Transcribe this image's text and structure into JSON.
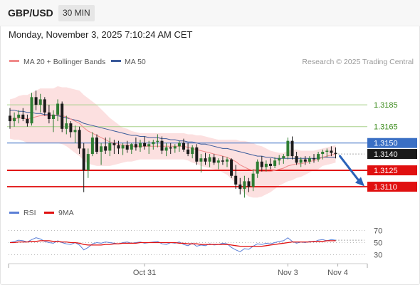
{
  "header": {
    "pair": "GBP/USD",
    "timeframe": "30 MIN"
  },
  "datetime": "Monday, November 3, 2025 7:10:24 AM CET",
  "copyright": "Research © 2025 Trading Central",
  "colors": {
    "ma20": "#f08a8a",
    "ma50": "#3a5a9a",
    "band": "#fbd6d6",
    "up": "#2e7d32",
    "down": "#1b1b1b",
    "support": "#e01010",
    "resistance_line": "#a8d08a",
    "current_line": "#3a6fc4",
    "rsi": "#5b7fd6",
    "rsi_ma": "#e01010"
  },
  "chart_data": [
    {
      "type": "candlestick",
      "legend": [
        "MA 20 + Bollinger Bands",
        "MA 50"
      ],
      "xticks": [
        "Oct 31",
        "Nov 3",
        "Nov 4"
      ],
      "ylim": [
        1.3097,
        1.3217
      ],
      "levels": [
        {
          "value": 1.3185,
          "label": "1.3185",
          "kind": "resistance"
        },
        {
          "value": 1.3165,
          "label": "1.3165",
          "kind": "resistance"
        },
        {
          "value": 1.315,
          "label": "1.3150",
          "kind": "current"
        },
        {
          "value": 1.314,
          "label": "1.3140",
          "kind": "last"
        },
        {
          "value": 1.3125,
          "label": "1.3125",
          "kind": "support"
        },
        {
          "value": 1.311,
          "label": "1.3110",
          "kind": "support"
        }
      ],
      "ohlc": [
        [
          1.3175,
          1.3182,
          1.3163,
          1.317
        ],
        [
          1.317,
          1.3178,
          1.3165,
          1.3173
        ],
        [
          1.3173,
          1.318,
          1.3168,
          1.3176
        ],
        [
          1.3176,
          1.3182,
          1.317,
          1.3172
        ],
        [
          1.3172,
          1.3176,
          1.3165,
          1.3168
        ],
        [
          1.3168,
          1.3196,
          1.3166,
          1.3192
        ],
        [
          1.3192,
          1.3198,
          1.318,
          1.3185
        ],
        [
          1.3185,
          1.3195,
          1.3178,
          1.319
        ],
        [
          1.319,
          1.3192,
          1.3175,
          1.3178
        ],
        [
          1.3178,
          1.3185,
          1.3168,
          1.3172
        ],
        [
          1.3172,
          1.318,
          1.316,
          1.3176
        ],
        [
          1.3176,
          1.319,
          1.317,
          1.3186
        ],
        [
          1.3186,
          1.3188,
          1.316,
          1.3163
        ],
        [
          1.3163,
          1.3175,
          1.3158,
          1.3168
        ],
        [
          1.3168,
          1.317,
          1.3155,
          1.316
        ],
        [
          1.316,
          1.3166,
          1.315,
          1.3162
        ],
        [
          1.3162,
          1.3165,
          1.314,
          1.3145
        ],
        [
          1.3145,
          1.315,
          1.3105,
          1.3125
        ],
        [
          1.3125,
          1.3145,
          1.3118,
          1.314
        ],
        [
          1.314,
          1.316,
          1.3138,
          1.3155
        ],
        [
          1.3155,
          1.3158,
          1.314,
          1.3142
        ],
        [
          1.3142,
          1.315,
          1.313,
          1.3147
        ],
        [
          1.3147,
          1.3155,
          1.314,
          1.3143
        ],
        [
          1.3143,
          1.3155,
          1.3138,
          1.315
        ],
        [
          1.315,
          1.3153,
          1.314,
          1.3148
        ],
        [
          1.3148,
          1.3152,
          1.314,
          1.3145
        ],
        [
          1.3145,
          1.315,
          1.3139,
          1.3148
        ],
        [
          1.3148,
          1.3152,
          1.3141,
          1.3144
        ],
        [
          1.3144,
          1.315,
          1.314,
          1.3149
        ],
        [
          1.3149,
          1.3155,
          1.3143,
          1.3146
        ],
        [
          1.3146,
          1.3153,
          1.3142,
          1.315
        ],
        [
          1.315,
          1.3156,
          1.3144,
          1.3147
        ],
        [
          1.3147,
          1.3152,
          1.314,
          1.3149
        ],
        [
          1.3149,
          1.3153,
          1.3144,
          1.3151
        ],
        [
          1.3151,
          1.3158,
          1.3146,
          1.3152
        ],
        [
          1.3152,
          1.3156,
          1.314,
          1.3143
        ],
        [
          1.3143,
          1.315,
          1.3138,
          1.3146
        ],
        [
          1.3146,
          1.315,
          1.314,
          1.3145
        ],
        [
          1.3145,
          1.3149,
          1.3141,
          1.3147
        ],
        [
          1.3147,
          1.3152,
          1.3142,
          1.315
        ],
        [
          1.315,
          1.3154,
          1.3142,
          1.3144
        ],
        [
          1.3144,
          1.315,
          1.3138,
          1.314
        ],
        [
          1.314,
          1.3148,
          1.3136,
          1.3146
        ],
        [
          1.3146,
          1.3149,
          1.313,
          1.3133
        ],
        [
          1.3133,
          1.314,
          1.3123,
          1.3136
        ],
        [
          1.3136,
          1.3141,
          1.313,
          1.3133
        ],
        [
          1.3133,
          1.314,
          1.3128,
          1.3137
        ],
        [
          1.3137,
          1.314,
          1.313,
          1.3132
        ],
        [
          1.3132,
          1.3136,
          1.3126,
          1.3134
        ],
        [
          1.3134,
          1.3138,
          1.313,
          1.3133
        ],
        [
          1.3133,
          1.3137,
          1.3128,
          1.3135
        ],
        [
          1.3135,
          1.3136,
          1.3118,
          1.312
        ],
        [
          1.312,
          1.313,
          1.3108,
          1.3112
        ],
        [
          1.3112,
          1.3118,
          1.3103,
          1.3108
        ],
        [
          1.3108,
          1.312,
          1.31,
          1.3115
        ],
        [
          1.3115,
          1.3118,
          1.3105,
          1.311
        ],
        [
          1.311,
          1.3126,
          1.3106,
          1.3122
        ],
        [
          1.3122,
          1.3135,
          1.3118,
          1.3133
        ],
        [
          1.3133,
          1.3138,
          1.3124,
          1.3128
        ],
        [
          1.3128,
          1.3134,
          1.3124,
          1.3131
        ],
        [
          1.3131,
          1.3136,
          1.3126,
          1.3129
        ],
        [
          1.3129,
          1.3137,
          1.3127,
          1.3134
        ],
        [
          1.3134,
          1.3139,
          1.313,
          1.3136
        ],
        [
          1.3136,
          1.314,
          1.3131,
          1.3138
        ],
        [
          1.3138,
          1.3155,
          1.3135,
          1.3152
        ],
        [
          1.3152,
          1.3156,
          1.3135,
          1.3138
        ],
        [
          1.3138,
          1.3142,
          1.313,
          1.3132
        ],
        [
          1.3132,
          1.3137,
          1.3128,
          1.3135
        ],
        [
          1.3135,
          1.3138,
          1.313,
          1.3133
        ],
        [
          1.3133,
          1.3138,
          1.3131,
          1.3136
        ],
        [
          1.3136,
          1.314,
          1.3132,
          1.3135
        ],
        [
          1.3135,
          1.3142,
          1.3133,
          1.314
        ],
        [
          1.314,
          1.3144,
          1.3135,
          1.3142
        ],
        [
          1.3142,
          1.3145,
          1.3137,
          1.3143
        ],
        [
          1.3143,
          1.3147,
          1.3138,
          1.3141
        ],
        [
          1.3141,
          1.3146,
          1.3136,
          1.314
        ]
      ],
      "ma20": [
        1.3172,
        1.3172,
        1.3173,
        1.3173,
        1.3172,
        1.3173,
        1.3174,
        1.3175,
        1.3175,
        1.3175,
        1.3175,
        1.3176,
        1.3175,
        1.3174,
        1.3172,
        1.317,
        1.3168,
        1.3164,
        1.3161,
        1.3159,
        1.3157,
        1.3155,
        1.3153,
        1.3151,
        1.315,
        1.3149,
        1.3148,
        1.3148,
        1.3147,
        1.3147,
        1.3147,
        1.3147,
        1.3147,
        1.3147,
        1.3147,
        1.3147,
        1.3147,
        1.3147,
        1.3147,
        1.3147,
        1.3147,
        1.3146,
        1.3145,
        1.3144,
        1.3143,
        1.3142,
        1.3141,
        1.314,
        1.3139,
        1.3138,
        1.3137,
        1.3135,
        1.3133,
        1.313,
        1.3128,
        1.3126,
        1.3125,
        1.3124,
        1.3124,
        1.3124,
        1.3124,
        1.3125,
        1.3126,
        1.3127,
        1.3129,
        1.313,
        1.3131,
        1.3131,
        1.3132,
        1.3133,
        1.3134,
        1.3135,
        1.3137,
        1.3138,
        1.3139,
        1.314
      ],
      "ma50": [
        1.318,
        1.318,
        1.3179,
        1.3179,
        1.3178,
        1.3178,
        1.3177,
        1.3177,
        1.3176,
        1.3176,
        1.3175,
        1.3175,
        1.3174,
        1.3173,
        1.3172,
        1.3171,
        1.317,
        1.3168,
        1.3167,
        1.3166,
        1.3165,
        1.3164,
        1.3163,
        1.3162,
        1.3161,
        1.316,
        1.3159,
        1.3158,
        1.3157,
        1.3157,
        1.3156,
        1.3156,
        1.3155,
        1.3155,
        1.3155,
        1.3154,
        1.3154,
        1.3153,
        1.3153,
        1.3152,
        1.3152,
        1.3151,
        1.3151,
        1.315,
        1.3149,
        1.3149,
        1.3148,
        1.3147,
        1.3146,
        1.3145,
        1.3145,
        1.3144,
        1.3143,
        1.3142,
        1.3141,
        1.314,
        1.3139,
        1.3138,
        1.3138,
        1.3137,
        1.3137,
        1.3136,
        1.3136,
        1.3136,
        1.3136,
        1.3136,
        1.3136,
        1.3136,
        1.3136,
        1.3136,
        1.3136,
        1.3136,
        1.3137,
        1.3137,
        1.3137,
        1.3137
      ],
      "band_width": [
        0.0018,
        0.0019,
        0.002,
        0.0021,
        0.0022,
        0.0023,
        0.0024,
        0.0025,
        0.0025,
        0.0025,
        0.0025,
        0.0026,
        0.0026,
        0.0027,
        0.0028,
        0.0029,
        0.003,
        0.003,
        0.003,
        0.0029,
        0.0028,
        0.0026,
        0.0024,
        0.0022,
        0.002,
        0.0018,
        0.0016,
        0.0015,
        0.0014,
        0.0013,
        0.0012,
        0.0012,
        0.0012,
        0.0012,
        0.0012,
        0.0012,
        0.0012,
        0.0012,
        0.0012,
        0.0012,
        0.0012,
        0.0012,
        0.0013,
        0.0013,
        0.0014,
        0.0014,
        0.0014,
        0.0014,
        0.0014,
        0.0015,
        0.0016,
        0.0018,
        0.002,
        0.0022,
        0.0024,
        0.0025,
        0.0025,
        0.0024,
        0.0023,
        0.0021,
        0.0019,
        0.0017,
        0.0015,
        0.0014,
        0.0014,
        0.0014,
        0.0013,
        0.0012,
        0.0011,
        0.001,
        0.0009,
        0.0009,
        0.0008,
        0.0008,
        0.0008,
        0.0008
      ],
      "forecast_arrow": {
        "from": 1.314,
        "to": 1.3113
      }
    },
    {
      "type": "line",
      "legend": [
        "RSI",
        "9MA"
      ],
      "ylim": [
        20,
        80
      ],
      "yticks": [
        70,
        50,
        30
      ],
      "rsi": [
        50,
        52,
        54,
        53,
        51,
        55,
        58,
        56,
        52,
        50,
        49,
        53,
        50,
        48,
        47,
        50,
        46,
        38,
        42,
        48,
        50,
        49,
        51,
        50,
        49,
        48,
        50,
        51,
        49,
        50,
        51,
        49,
        50,
        51,
        52,
        48,
        47,
        50,
        49,
        51,
        47,
        45,
        49,
        44,
        46,
        45,
        48,
        46,
        47,
        49,
        48,
        42,
        38,
        35,
        40,
        39,
        44,
        48,
        47,
        49,
        48,
        50,
        52,
        53,
        58,
        52,
        49,
        51,
        50,
        52,
        51,
        54,
        55,
        53,
        55,
        54
      ],
      "rsi_ma": [
        50,
        50,
        51,
        51,
        51,
        52,
        52,
        53,
        53,
        53,
        52,
        52,
        51,
        51,
        50,
        50,
        49,
        47,
        46,
        46,
        46,
        46,
        47,
        47,
        48,
        48,
        49,
        49,
        49,
        49,
        50,
        50,
        50,
        50,
        50,
        50,
        50,
        50,
        50,
        49,
        49,
        48,
        48,
        48,
        47,
        47,
        47,
        47,
        47,
        47,
        47,
        46,
        45,
        44,
        44,
        44,
        44,
        44,
        44,
        45,
        46,
        47,
        48,
        49,
        50,
        51,
        51,
        51,
        51,
        51,
        52,
        52,
        52,
        53,
        53,
        53
      ]
    }
  ]
}
